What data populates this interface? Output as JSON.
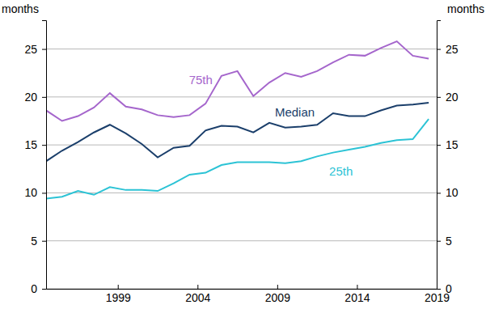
{
  "chart_data": {
    "type": "line",
    "y_label": "months",
    "x": [
      1995,
      1996,
      1997,
      1998,
      1999,
      2000,
      2001,
      2002,
      2003,
      2004,
      2005,
      2006,
      2007,
      2008,
      2009,
      2010,
      2011,
      2012,
      2013,
      2014,
      2015,
      2016,
      2017,
      2018,
      2019
    ],
    "series": [
      {
        "name": "75th",
        "color": "#a566cc",
        "values": [
          18.6,
          17.5,
          18.0,
          18.9,
          20.4,
          19.0,
          18.7,
          18.1,
          17.9,
          18.1,
          19.3,
          22.2,
          22.7,
          20.1,
          21.5,
          22.5,
          22.1,
          22.7,
          23.6,
          24.4,
          24.3,
          25.1,
          25.8,
          24.3,
          24.0
        ]
      },
      {
        "name": "Median",
        "color": "#1b3f6b",
        "values": [
          13.3,
          14.4,
          15.3,
          16.3,
          17.1,
          16.2,
          15.1,
          13.7,
          14.7,
          14.9,
          16.5,
          17.0,
          16.9,
          16.3,
          17.3,
          16.8,
          16.9,
          17.1,
          18.3,
          18.0,
          18.0,
          18.6,
          19.1,
          19.2,
          19.4
        ]
      },
      {
        "name": "25th",
        "color": "#2cc3d5",
        "values": [
          9.4,
          9.6,
          10.2,
          9.8,
          10.6,
          10.3,
          10.3,
          10.2,
          11.0,
          11.9,
          12.1,
          12.9,
          13.2,
          13.2,
          13.2,
          13.1,
          13.3,
          13.8,
          14.2,
          14.5,
          14.8,
          15.2,
          15.5,
          15.6,
          17.7
        ]
      }
    ],
    "xlim": [
      1995,
      2019.5
    ],
    "xticks": [
      {
        "value": 1999.5,
        "label": "1999"
      },
      {
        "value": 2004.5,
        "label": "2004"
      },
      {
        "value": 2009.5,
        "label": "2009"
      },
      {
        "value": 2014.5,
        "label": "2014"
      },
      {
        "value": 2019.5,
        "label": "2019"
      }
    ],
    "ylim": [
      0,
      28
    ],
    "yticks": [
      0,
      5,
      10,
      15,
      20,
      25
    ],
    "grid": true
  }
}
